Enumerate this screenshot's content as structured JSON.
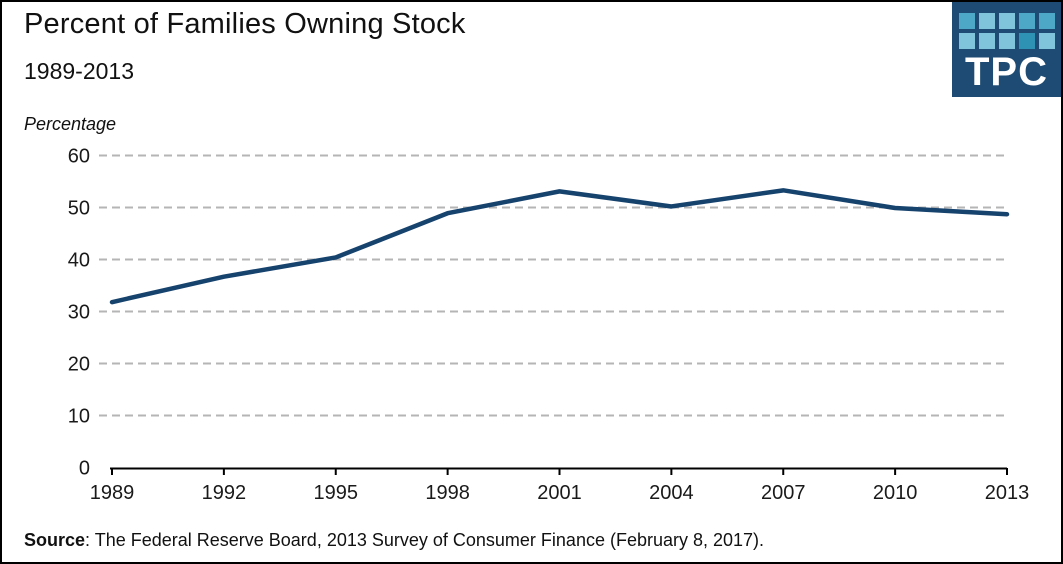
{
  "header": {
    "title": "Percent of Families Owning Stock",
    "subtitle": "1989-2013"
  },
  "logo": {
    "text": "TPC",
    "background": "#1d4b73",
    "square_colors": [
      [
        "#4da7c6",
        "#7fc4da",
        "#7fc4da",
        "#4da7c6",
        "#4da7c6"
      ],
      [
        "#7fc4da",
        "#7fc4da",
        "#7fc4da",
        "#2e92b4",
        "#7fc4da"
      ]
    ]
  },
  "chart_data": {
    "type": "line",
    "title": "Percent of Families Owning Stock",
    "subtitle": "1989-2013",
    "ylabel": "Percentage",
    "x": [
      1989,
      1992,
      1995,
      1998,
      2001,
      2004,
      2007,
      2010,
      2013
    ],
    "series": [
      {
        "name": "Percent of families owning stock",
        "values": [
          31.8,
          36.7,
          40.4,
          48.9,
          53.1,
          50.2,
          53.3,
          49.9,
          48.7
        ]
      }
    ],
    "ylim": [
      0,
      60
    ],
    "yticks": [
      0,
      10,
      20,
      30,
      40,
      50,
      60
    ],
    "grid": "horizontal-dashed",
    "legend": "none",
    "line_color": "#16426e",
    "grid_color": "#b5b5b5",
    "axis_color": "#000000",
    "tick_label_color": "#1a1a1a"
  },
  "footer": {
    "source_label": "Source",
    "source_text": ": The Federal Reserve Board, 2013 Survey of Consumer Finance (February 8, 2017)."
  }
}
